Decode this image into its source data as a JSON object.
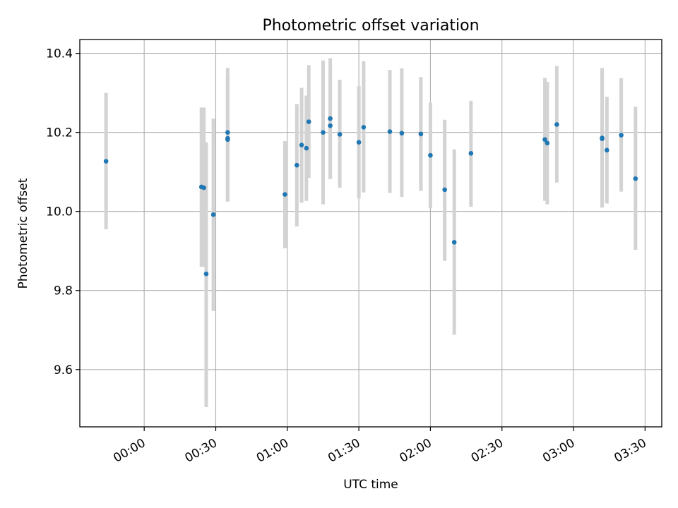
{
  "chart_data": {
    "type": "scatter",
    "title": "Photometric offset variation",
    "xlabel": "UTC time",
    "ylabel": "Photometric offset",
    "xlim": [
      "23:33",
      "03:37"
    ],
    "ylim": [
      9.455,
      10.435
    ],
    "x_ticks": [
      "00:00",
      "00:30",
      "01:00",
      "01:30",
      "02:00",
      "02:30",
      "03:00",
      "03:30"
    ],
    "y_ticks": [
      "9.6",
      "9.8",
      "10.0",
      "10.2",
      "10.4"
    ],
    "grid": true,
    "x_tick_rotation": "30 degrees",
    "colors": {
      "point": "#1f77b4",
      "errorbar": "#d3d3d3",
      "grid": "#b0b0b0"
    },
    "points": [
      {
        "x": "23:44",
        "y": 10.127,
        "lo": 9.955,
        "hi": 10.3
      },
      {
        "x": "00:24",
        "y": 10.062,
        "lo": 9.86,
        "hi": 10.263
      },
      {
        "x": "00:25",
        "y": 10.06,
        "lo": 9.86,
        "hi": 10.263
      },
      {
        "x": "00:26",
        "y": 9.842,
        "lo": 9.505,
        "hi": 10.175
      },
      {
        "x": "00:29",
        "y": 9.992,
        "lo": 9.748,
        "hi": 10.235
      },
      {
        "x": "00:35",
        "y": 10.2,
        "lo": 10.025,
        "hi": 10.363
      },
      {
        "x": "00:35",
        "y": 10.185,
        "lo": 10.025,
        "hi": 10.343
      },
      {
        "x": "00:35",
        "y": 10.182,
        "lo": 10.025,
        "hi": 10.343
      },
      {
        "x": "00:59",
        "y": 10.043,
        "lo": 9.907,
        "hi": 10.178
      },
      {
        "x": "01:04",
        "y": 10.117,
        "lo": 9.962,
        "hi": 10.272
      },
      {
        "x": "01:06",
        "y": 10.168,
        "lo": 10.022,
        "hi": 10.313
      },
      {
        "x": "01:08",
        "y": 10.16,
        "lo": 10.027,
        "hi": 10.293
      },
      {
        "x": "01:09",
        "y": 10.227,
        "lo": 10.085,
        "hi": 10.37
      },
      {
        "x": "01:15",
        "y": 10.2,
        "lo": 10.018,
        "hi": 10.382
      },
      {
        "x": "01:18",
        "y": 10.217,
        "lo": 10.082,
        "hi": 10.352
      },
      {
        "x": "01:18",
        "y": 10.235,
        "lo": 10.082,
        "hi": 10.388
      },
      {
        "x": "01:22",
        "y": 10.195,
        "lo": 10.06,
        "hi": 10.333
      },
      {
        "x": "01:30",
        "y": 10.175,
        "lo": 10.033,
        "hi": 10.317
      },
      {
        "x": "01:32",
        "y": 10.213,
        "lo": 10.048,
        "hi": 10.38
      },
      {
        "x": "01:43",
        "y": 10.202,
        "lo": 10.047,
        "hi": 10.358
      },
      {
        "x": "01:48",
        "y": 10.198,
        "lo": 10.037,
        "hi": 10.362
      },
      {
        "x": "01:56",
        "y": 10.196,
        "lo": 10.052,
        "hi": 10.34
      },
      {
        "x": "02:00",
        "y": 10.142,
        "lo": 10.008,
        "hi": 10.275
      },
      {
        "x": "02:06",
        "y": 10.055,
        "lo": 9.875,
        "hi": 10.232
      },
      {
        "x": "02:10",
        "y": 9.922,
        "lo": 9.688,
        "hi": 10.157
      },
      {
        "x": "02:17",
        "y": 10.147,
        "lo": 10.012,
        "hi": 10.28
      },
      {
        "x": "02:48",
        "y": 10.182,
        "lo": 10.027,
        "hi": 10.338
      },
      {
        "x": "02:49",
        "y": 10.173,
        "lo": 10.018,
        "hi": 10.328
      },
      {
        "x": "02:53",
        "y": 10.22,
        "lo": 10.073,
        "hi": 10.368
      },
      {
        "x": "03:12",
        "y": 10.184,
        "lo": 10.01,
        "hi": 10.358
      },
      {
        "x": "03:12",
        "y": 10.186,
        "lo": 10.01,
        "hi": 10.363
      },
      {
        "x": "03:14",
        "y": 10.155,
        "lo": 10.02,
        "hi": 10.29
      },
      {
        "x": "03:20",
        "y": 10.193,
        "lo": 10.05,
        "hi": 10.337
      },
      {
        "x": "03:26",
        "y": 10.083,
        "lo": 9.903,
        "hi": 10.265
      }
    ]
  }
}
